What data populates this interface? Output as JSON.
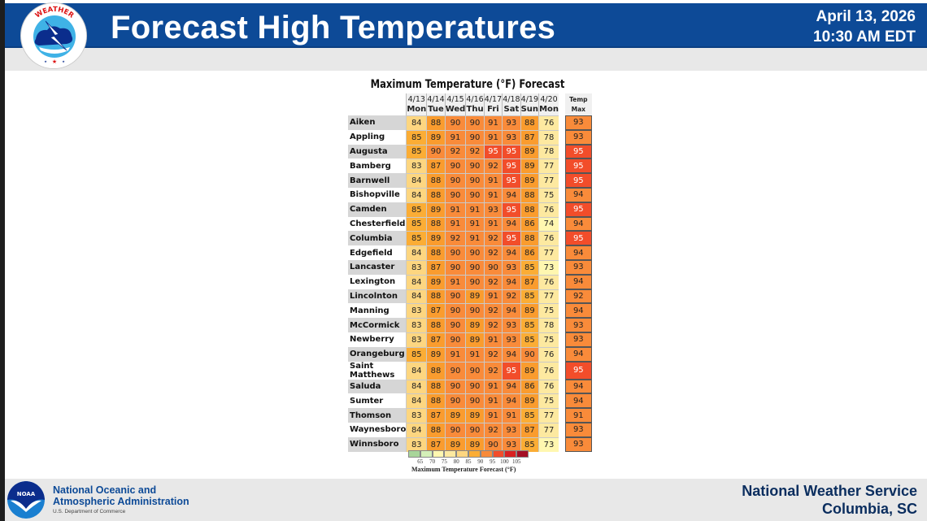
{
  "header": {
    "title": "Forecast High Temperatures",
    "date": "April 13, 2026",
    "time": "10:30 AM EDT",
    "logo_icon": "nws-logo-icon"
  },
  "footer": {
    "noaa_line1": "National Oceanic and",
    "noaa_line2": "Atmospheric Administration",
    "noaa_sub": "U.S. Department of Commerce",
    "nws_line1": "National Weather Service",
    "nws_line2": "Columbia, SC",
    "noaa_logo_icon": "noaa-logo-icon"
  },
  "colors": {
    "header_blue": "#0d4a97",
    "c73": "#fff7b0",
    "c75": "#fde9a0",
    "c80": "#fdd680",
    "c85": "#fbad35",
    "c89": "#fa9c2e",
    "c90": "#f98b3a",
    "c95": "#f24d2a"
  },
  "chart_data": {
    "type": "table",
    "title": "Maximum Temperature (°F) Forecast",
    "columns": [
      {
        "date": "4/13",
        "day": "Mon"
      },
      {
        "date": "4/14",
        "day": "Tue"
      },
      {
        "date": "4/15",
        "day": "Wed"
      },
      {
        "date": "4/16",
        "day": "Thu"
      },
      {
        "date": "4/17",
        "day": "Fri"
      },
      {
        "date": "4/18",
        "day": "Sat"
      },
      {
        "date": "4/19",
        "day": "Sun"
      },
      {
        "date": "4/20",
        "day": "Mon"
      }
    ],
    "max_header": "Temp Max",
    "rows": [
      {
        "name": "Aiken",
        "values": [
          84,
          88,
          90,
          90,
          91,
          93,
          88,
          76
        ],
        "max": 93
      },
      {
        "name": "Appling",
        "values": [
          85,
          89,
          91,
          90,
          91,
          93,
          87,
          78
        ],
        "max": 93
      },
      {
        "name": "Augusta",
        "values": [
          85,
          90,
          92,
          92,
          95,
          95,
          89,
          78
        ],
        "max": 95
      },
      {
        "name": "Bamberg",
        "values": [
          83,
          87,
          90,
          90,
          92,
          95,
          89,
          77
        ],
        "max": 95
      },
      {
        "name": "Barnwell",
        "values": [
          84,
          88,
          90,
          90,
          91,
          95,
          89,
          77
        ],
        "max": 95
      },
      {
        "name": "Bishopville",
        "values": [
          84,
          88,
          90,
          90,
          91,
          94,
          88,
          75
        ],
        "max": 94
      },
      {
        "name": "Camden",
        "values": [
          85,
          89,
          91,
          91,
          93,
          95,
          88,
          76
        ],
        "max": 95
      },
      {
        "name": "Chesterfield",
        "values": [
          85,
          88,
          91,
          91,
          91,
          94,
          86,
          74
        ],
        "max": 94
      },
      {
        "name": "Columbia",
        "values": [
          85,
          89,
          92,
          91,
          92,
          95,
          88,
          76
        ],
        "max": 95
      },
      {
        "name": "Edgefield",
        "values": [
          84,
          88,
          90,
          90,
          92,
          94,
          86,
          77
        ],
        "max": 94
      },
      {
        "name": "Lancaster",
        "values": [
          83,
          87,
          90,
          90,
          90,
          93,
          85,
          73
        ],
        "max": 93
      },
      {
        "name": "Lexington",
        "values": [
          84,
          89,
          91,
          90,
          92,
          94,
          87,
          76
        ],
        "max": 94
      },
      {
        "name": "Lincolnton",
        "values": [
          84,
          88,
          90,
          89,
          91,
          92,
          85,
          77
        ],
        "max": 92
      },
      {
        "name": "Manning",
        "values": [
          83,
          87,
          90,
          90,
          92,
          94,
          89,
          75
        ],
        "max": 94
      },
      {
        "name": "McCormick",
        "values": [
          83,
          88,
          90,
          89,
          92,
          93,
          85,
          78
        ],
        "max": 93
      },
      {
        "name": "Newberry",
        "values": [
          83,
          87,
          90,
          89,
          91,
          93,
          85,
          75
        ],
        "max": 93
      },
      {
        "name": "Orangeburg",
        "values": [
          85,
          89,
          91,
          91,
          92,
          94,
          90,
          76
        ],
        "max": 94
      },
      {
        "name": "Saint Matthews",
        "values": [
          84,
          88,
          90,
          90,
          92,
          95,
          89,
          76
        ],
        "max": 95
      },
      {
        "name": "Saluda",
        "values": [
          84,
          88,
          90,
          90,
          91,
          94,
          86,
          76
        ],
        "max": 94
      },
      {
        "name": "Sumter",
        "values": [
          84,
          88,
          90,
          90,
          91,
          94,
          89,
          75
        ],
        "max": 94
      },
      {
        "name": "Thomson",
        "values": [
          83,
          87,
          89,
          89,
          91,
          91,
          85,
          77
        ],
        "max": 91
      },
      {
        "name": "Waynesboro",
        "values": [
          84,
          88,
          90,
          90,
          92,
          93,
          87,
          77
        ],
        "max": 93
      },
      {
        "name": "Winnsboro",
        "values": [
          83,
          87,
          89,
          89,
          90,
          93,
          85,
          73
        ],
        "max": 93
      }
    ],
    "legend": {
      "label": "Maximum Temperature Forecast (°F)",
      "ticks": [
        "65",
        "70",
        "75",
        "80",
        "85",
        "90",
        "95",
        "100",
        "105"
      ],
      "colors": [
        "#a8d59a",
        "#d4efb8",
        "#fff7b0",
        "#fde9a0",
        "#fdd680",
        "#fbad35",
        "#f98b3a",
        "#f24d2a",
        "#d92020",
        "#a50f24"
      ]
    }
  }
}
